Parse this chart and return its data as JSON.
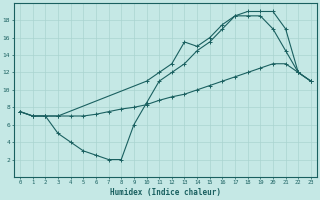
{
  "xlabel": "Humidex (Indice chaleur)",
  "bg_color": "#c5e8e5",
  "line_color": "#1a6060",
  "grid_color": "#aad4d0",
  "xlim": [
    -0.5,
    23.5
  ],
  "ylim": [
    0,
    20
  ],
  "xticks": [
    0,
    1,
    2,
    3,
    4,
    5,
    6,
    7,
    8,
    9,
    10,
    11,
    12,
    13,
    14,
    15,
    16,
    17,
    18,
    19,
    20,
    21,
    22,
    23
  ],
  "yticks": [
    2,
    4,
    6,
    8,
    10,
    12,
    14,
    16,
    18
  ],
  "line1_x": [
    0,
    1,
    2,
    3,
    10,
    11,
    12,
    13,
    14,
    15,
    16,
    17,
    18,
    19,
    20,
    21,
    22,
    23
  ],
  "line1_y": [
    7.5,
    7.0,
    7.0,
    7.0,
    11.0,
    12.0,
    13.0,
    15.5,
    15.0,
    16.0,
    17.5,
    18.5,
    19.0,
    19.0,
    19.0,
    17.0,
    12.0,
    11.0
  ],
  "line2_x": [
    0,
    1,
    2,
    3,
    4,
    5,
    6,
    7,
    8,
    9,
    10,
    11,
    12,
    13,
    14,
    15,
    16,
    17,
    18,
    19,
    20,
    21,
    22,
    23
  ],
  "line2_y": [
    7.5,
    7.0,
    7.0,
    7.0,
    7.0,
    7.0,
    7.2,
    7.5,
    7.8,
    8.0,
    8.3,
    8.8,
    9.2,
    9.5,
    10.0,
    10.5,
    11.0,
    11.5,
    12.0,
    12.5,
    13.0,
    13.0,
    12.0,
    11.0
  ],
  "line3_x": [
    0,
    1,
    2,
    3,
    4,
    5,
    6,
    7,
    8,
    9,
    10,
    11,
    12,
    13,
    14,
    15,
    16,
    17,
    18,
    19,
    20,
    21,
    22,
    23
  ],
  "line3_y": [
    7.5,
    7.0,
    7.0,
    5.0,
    4.0,
    3.0,
    2.5,
    2.0,
    2.0,
    6.0,
    8.5,
    11.0,
    12.0,
    13.0,
    14.5,
    15.5,
    17.0,
    18.5,
    18.5,
    18.5,
    17.0,
    14.5,
    12.0,
    11.0
  ]
}
